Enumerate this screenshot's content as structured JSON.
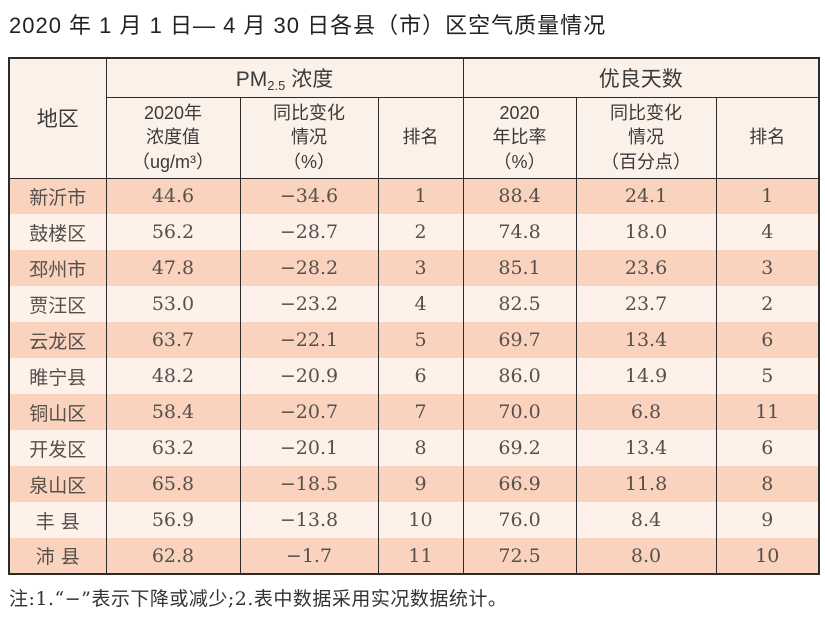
{
  "page": {
    "title": "2020 年 1 月 1 日— 4 月 30 日各县（市）区空气质量情况",
    "footnote": "注:1.“−”表示下降或减少;2.表中数据采用实况数据统计。"
  },
  "table": {
    "headers": {
      "region": "地区",
      "pm_group": {
        "prefix": "PM",
        "sub": "2.5",
        "suffix": " 浓度"
      },
      "good_group": "优良天数",
      "pm_value": "2020年\n浓度值\n（ug/m³）",
      "pm_change": "同比变化\n情况\n（%）",
      "pm_rank": "排名",
      "good_rate": "2020\n年比率\n（%）",
      "good_change": "同比变化\n情况\n（百分点）",
      "good_rank": "排名"
    },
    "rows": [
      {
        "region": "新沂市",
        "pm_value": "44.6",
        "pm_change": "−34.6",
        "pm_rank": "1",
        "good_rate": "88.4",
        "good_change": "24.1",
        "good_rank": "1"
      },
      {
        "region": "鼓楼区",
        "pm_value": "56.2",
        "pm_change": "−28.7",
        "pm_rank": "2",
        "good_rate": "74.8",
        "good_change": "18.0",
        "good_rank": "4"
      },
      {
        "region": "邳州市",
        "pm_value": "47.8",
        "pm_change": "−28.2",
        "pm_rank": "3",
        "good_rate": "85.1",
        "good_change": "23.6",
        "good_rank": "3"
      },
      {
        "region": "贾汪区",
        "pm_value": "53.0",
        "pm_change": "−23.2",
        "pm_rank": "4",
        "good_rate": "82.5",
        "good_change": "23.7",
        "good_rank": "2"
      },
      {
        "region": "云龙区",
        "pm_value": "63.7",
        "pm_change": "−22.1",
        "pm_rank": "5",
        "good_rate": "69.7",
        "good_change": "13.4",
        "good_rank": "6"
      },
      {
        "region": "睢宁县",
        "pm_value": "48.2",
        "pm_change": "−20.9",
        "pm_rank": "6",
        "good_rate": "86.0",
        "good_change": "14.9",
        "good_rank": "5"
      },
      {
        "region": "铜山区",
        "pm_value": "58.4",
        "pm_change": "−20.7",
        "pm_rank": "7",
        "good_rate": "70.0",
        "good_change": "6.8",
        "good_rank": "11"
      },
      {
        "region": "开发区",
        "pm_value": "63.2",
        "pm_change": "−20.1",
        "pm_rank": "8",
        "good_rate": "69.2",
        "good_change": "13.4",
        "good_rank": "6"
      },
      {
        "region": "泉山区",
        "pm_value": "65.8",
        "pm_change": "−18.5",
        "pm_rank": "9",
        "good_rate": "66.9",
        "good_change": "11.8",
        "good_rank": "8"
      },
      {
        "region": "丰 县",
        "pm_value": "56.9",
        "pm_change": "−13.8",
        "pm_rank": "10",
        "good_rate": "76.0",
        "good_change": "8.4",
        "good_rank": "9"
      },
      {
        "region": "沛 县",
        "pm_value": "62.8",
        "pm_change": "−1.7",
        "pm_rank": "11",
        "good_rate": "72.5",
        "good_change": "8.0",
        "good_rank": "10"
      }
    ]
  },
  "colors": {
    "border": "#2b2b2b",
    "row_dark": "#fad3bf",
    "row_light": "#fdf1ea",
    "header_bg": "#fcf1e9",
    "title_color": "#222222",
    "data_color": "#55504a",
    "header_color": "#3a3a3a"
  }
}
